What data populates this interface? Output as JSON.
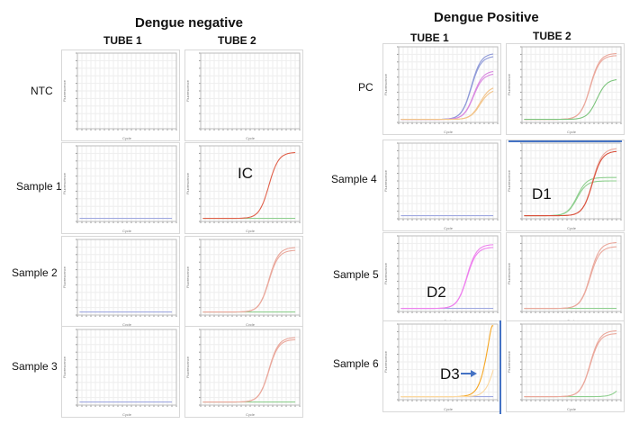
{
  "groups": [
    {
      "title": "Dengue negative",
      "tube1": "TUBE 1",
      "tube2": "TUBE 2",
      "rows": [
        "NTC",
        "Sample 1",
        "Sample 2",
        "Sample 3"
      ]
    },
    {
      "title": "Dengue Positive",
      "tube1": "TUBE 1",
      "tube2": "TUBE 2",
      "rows": [
        "PC",
        "Sample 4",
        "Sample 5",
        "Sample 6"
      ]
    }
  ],
  "annotations": {
    "ic": "IC",
    "d1": "D1",
    "d2": "D2",
    "d3": "D3"
  },
  "colors": {
    "arrow": "#4472c4",
    "frame": "#4472c4"
  },
  "chart_data": [
    {
      "type": "line",
      "panel": "negative-ntc-tube1",
      "xlabel": "Cycle",
      "ylabel": "Fluorescence",
      "xlim": [
        0,
        45
      ],
      "ylim": [
        0,
        1
      ],
      "grid": true,
      "series": []
    },
    {
      "type": "line",
      "panel": "negative-ntc-tube2",
      "xlabel": "Cycle",
      "ylabel": "Fluorescence",
      "xlim": [
        0,
        45
      ],
      "ylim": [
        0,
        1
      ],
      "grid": true,
      "series": []
    },
    {
      "type": "line",
      "panel": "negative-sample1-tube1",
      "xlabel": "Cycle",
      "ylabel": "Fluorescence",
      "xlim": [
        0,
        45
      ],
      "ylim": [
        0,
        1
      ],
      "grid": true,
      "series": [
        {
          "color": "#9fa8e0",
          "ct": 0,
          "plateau": 0
        }
      ]
    },
    {
      "type": "line",
      "panel": "negative-sample1-tube2",
      "xlabel": "Cycle",
      "ylabel": "Fluorescence",
      "xlim": [
        0,
        45
      ],
      "ylim": [
        0,
        1
      ],
      "grid": true,
      "series": [
        {
          "color": "#8fcf8f",
          "ct": 0,
          "plateau": 0
        },
        {
          "color": "#e0604a",
          "ct": 31,
          "plateau": 0.95
        }
      ]
    },
    {
      "type": "line",
      "panel": "negative-sample2-tube1",
      "xlabel": "Cycle",
      "ylabel": "Fluorescence",
      "xlim": [
        0,
        45
      ],
      "ylim": [
        0,
        1
      ],
      "grid": true,
      "series": [
        {
          "color": "#9fa8e0",
          "ct": 0,
          "plateau": 0
        }
      ]
    },
    {
      "type": "line",
      "panel": "negative-sample2-tube2",
      "xlabel": "Cycle",
      "ylabel": "Fluorescence",
      "xlim": [
        0,
        45
      ],
      "ylim": [
        0,
        1
      ],
      "grid": true,
      "series": [
        {
          "color": "#8fcf8f",
          "ct": 0,
          "plateau": 0
        },
        {
          "color": "#eaa89c",
          "ct": 31,
          "plateau": 0.93
        },
        {
          "color": "#eaa89c",
          "ct": 31,
          "plateau": 0.89
        }
      ]
    },
    {
      "type": "line",
      "panel": "negative-sample3-tube1",
      "xlabel": "Cycle",
      "ylabel": "Fluorescence",
      "xlim": [
        0,
        45
      ],
      "ylim": [
        0,
        1
      ],
      "grid": true,
      "series": [
        {
          "color": "#9fa8e0",
          "ct": 0,
          "plateau": 0
        }
      ]
    },
    {
      "type": "line",
      "panel": "negative-sample3-tube2",
      "xlabel": "Cycle",
      "ylabel": "Fluorescence",
      "xlim": [
        0,
        45
      ],
      "ylim": [
        0,
        1
      ],
      "grid": true,
      "series": [
        {
          "color": "#8fcf8f",
          "ct": 0,
          "plateau": 0
        },
        {
          "color": "#eaa89c",
          "ct": 31,
          "plateau": 0.93
        },
        {
          "color": "#eaa89c",
          "ct": 31,
          "plateau": 0.9
        }
      ]
    },
    {
      "type": "line",
      "panel": "positive-pc-tube1",
      "xlabel": "Cycle",
      "ylabel": "Fluorescence",
      "xlim": [
        0,
        45
      ],
      "ylim": [
        0,
        1
      ],
      "grid": true,
      "series": [
        {
          "color": "#8f9ad8",
          "ct": 33,
          "plateau": 0.95
        },
        {
          "color": "#8f9ad8",
          "ct": 33,
          "plateau": 0.91
        },
        {
          "color": "#d98ae0",
          "ct": 34,
          "plateau": 0.7
        },
        {
          "color": "#d98ae0",
          "ct": 34,
          "plateau": 0.66
        },
        {
          "color": "#f2c48a",
          "ct": 37,
          "plateau": 0.48
        },
        {
          "color": "#f2c48a",
          "ct": 37,
          "plateau": 0.43
        }
      ]
    },
    {
      "type": "line",
      "panel": "positive-pc-tube2",
      "xlabel": "Cycle",
      "ylabel": "Fluorescence",
      "xlim": [
        0,
        45
      ],
      "ylim": [
        0,
        1
      ],
      "grid": true,
      "series": [
        {
          "color": "#eaa89c",
          "ct": 31,
          "plateau": 0.95
        },
        {
          "color": "#eaa89c",
          "ct": 31,
          "plateau": 0.92
        },
        {
          "color": "#7cc47c",
          "ct": 34,
          "plateau": 0.58
        }
      ]
    },
    {
      "type": "line",
      "panel": "positive-sample4-tube1",
      "xlabel": "Cycle",
      "ylabel": "Fluorescence",
      "xlim": [
        0,
        45
      ],
      "ylim": [
        0,
        1
      ],
      "grid": true,
      "series": [
        {
          "color": "#9fa8e0",
          "ct": 0,
          "plateau": 0
        }
      ]
    },
    {
      "type": "line",
      "panel": "positive-sample4-tube2",
      "xlabel": "Cycle",
      "ylabel": "Fluorescence",
      "xlim": [
        0,
        45
      ],
      "ylim": [
        0,
        1
      ],
      "grid": true,
      "series": [
        {
          "color": "#8fcf8f",
          "ct": 25,
          "plateau": 0.55
        },
        {
          "color": "#8fcf8f",
          "ct": 25,
          "plateau": 0.5
        },
        {
          "color": "#eaa89c",
          "ct": 32,
          "plateau": 0.97
        },
        {
          "color": "#d9503c",
          "ct": 32,
          "plateau": 0.93
        }
      ]
    },
    {
      "type": "line",
      "panel": "positive-sample5-tube1",
      "xlabel": "Cycle",
      "ylabel": "Fluorescence",
      "xlim": [
        0,
        45
      ],
      "ylim": [
        0,
        1
      ],
      "grid": true,
      "series": [
        {
          "color": "#9fa8e0",
          "ct": 0,
          "plateau": 0
        },
        {
          "color": "#ee82ee",
          "ct": 31,
          "plateau": 0.92
        },
        {
          "color": "#ee82ee",
          "ct": 31,
          "plateau": 0.88
        }
      ]
    },
    {
      "type": "line",
      "panel": "positive-sample5-tube2",
      "xlabel": "Cycle",
      "ylabel": "Fluorescence",
      "xlim": [
        0,
        45
      ],
      "ylim": [
        0,
        1
      ],
      "grid": true,
      "series": [
        {
          "color": "#8fcf8f",
          "ct": 0,
          "plateau": 0
        },
        {
          "color": "#eaa89c",
          "ct": 31,
          "plateau": 0.95
        },
        {
          "color": "#eaa89c",
          "ct": 31,
          "plateau": 0.89
        }
      ]
    },
    {
      "type": "line",
      "panel": "positive-sample6-tube1",
      "xlabel": "Cycle",
      "ylabel": "Fluorescence",
      "xlim": [
        0,
        45
      ],
      "ylim": [
        0,
        1
      ],
      "grid": true,
      "series": [
        {
          "color": "#9fa8e0",
          "ct": 0,
          "plateau": 0
        },
        {
          "color": "#f5a623",
          "ct": 41,
          "plateau": 1.6
        },
        {
          "color": "#fbd8a0",
          "ct": 44,
          "plateau": 1.0
        }
      ]
    },
    {
      "type": "line",
      "panel": "positive-sample6-tube2",
      "xlabel": "Cycle",
      "ylabel": "Fluorescence",
      "xlim": [
        0,
        45
      ],
      "ylim": [
        0,
        1
      ],
      "grid": true,
      "series": [
        {
          "color": "#8fcf8f",
          "ct": 46,
          "plateau": 0.4
        },
        {
          "color": "#eaa89c",
          "ct": 31,
          "plateau": 0.95
        },
        {
          "color": "#eaa89c",
          "ct": 31,
          "plateau": 0.91
        }
      ]
    }
  ]
}
